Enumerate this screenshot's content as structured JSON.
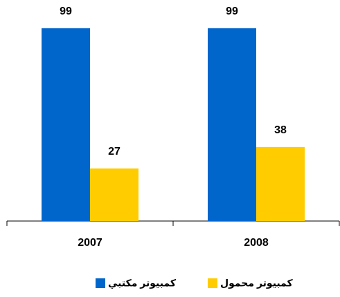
{
  "chart_data": {
    "type": "bar",
    "categories": [
      "2007",
      "2008"
    ],
    "series": [
      {
        "name": "كمبيوتر مكتبي",
        "color": "#0066cc",
        "values": [
          99,
          99
        ]
      },
      {
        "name": "كمبيوتر محمول",
        "color": "#ffcc00",
        "values": [
          27,
          38
        ]
      }
    ],
    "ylim": [
      0,
      100
    ],
    "legend": "bottom"
  }
}
